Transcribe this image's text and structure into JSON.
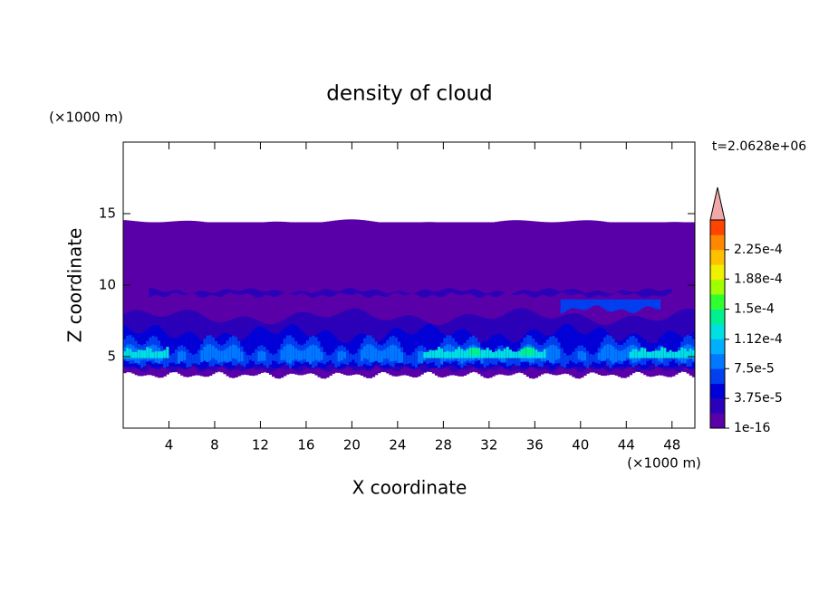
{
  "chart_data": {
    "type": "contour",
    "title": "density of cloud",
    "x_label": "X coordinate",
    "y_label": "Z coordinate",
    "x_unit": "(×1000 m)",
    "y_unit": "(×1000 m)",
    "time_label": "t=2.0628e+06",
    "xlim": [
      0,
      50
    ],
    "ylim": [
      0,
      20
    ],
    "xticks": [
      4,
      8,
      12,
      16,
      20,
      24,
      28,
      32,
      36,
      40,
      44,
      48
    ],
    "yticks": [
      5,
      10,
      15
    ],
    "colorbar": {
      "lim": [
        1e-16,
        0.0002625
      ],
      "ticks": [
        {
          "value": 1e-16,
          "label": "1e-16"
        },
        {
          "value": 3.75e-05,
          "label": "3.75e-5"
        },
        {
          "value": 7.5e-05,
          "label": "7.5e-5"
        },
        {
          "value": 0.000112,
          "label": "1.12e-4"
        },
        {
          "value": 0.00015,
          "label": "1.5e-4"
        },
        {
          "value": 0.000188,
          "label": "1.88e-4"
        },
        {
          "value": 0.000225,
          "label": "2.25e-4"
        }
      ],
      "colors": [
        "#5a00a8",
        "#2a00b8",
        "#0000d8",
        "#0040f0",
        "#0078ff",
        "#00b0ff",
        "#00e0e0",
        "#00f090",
        "#30ff30",
        "#a0ff00",
        "#f0f000",
        "#ffc000",
        "#ff8800",
        "#ff4400"
      ],
      "extend_color": "#f0a8a8"
    }
  }
}
